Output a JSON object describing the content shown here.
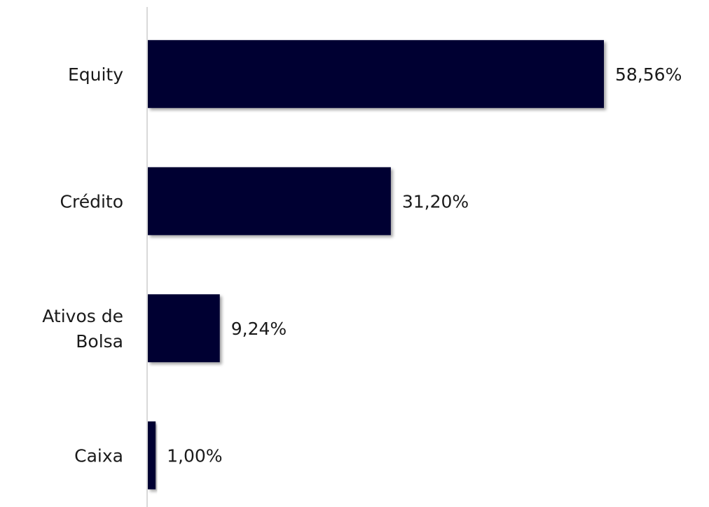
{
  "chart_data": {
    "type": "bar",
    "orientation": "horizontal",
    "categories": [
      [
        "Equity"
      ],
      [
        "Crédito"
      ],
      [
        "Ativos de",
        "Bolsa"
      ],
      [
        "Caixa"
      ]
    ],
    "values": [
      58.56,
      31.2,
      9.24,
      1.0
    ],
    "value_labels": [
      "58,56%",
      "31,20%",
      "9,24%",
      "1,00%"
    ],
    "xlim": [
      0,
      58.56
    ],
    "bar_color": "#000033",
    "axis_color": "#d9d9d9",
    "grid": false,
    "legend": "none"
  }
}
